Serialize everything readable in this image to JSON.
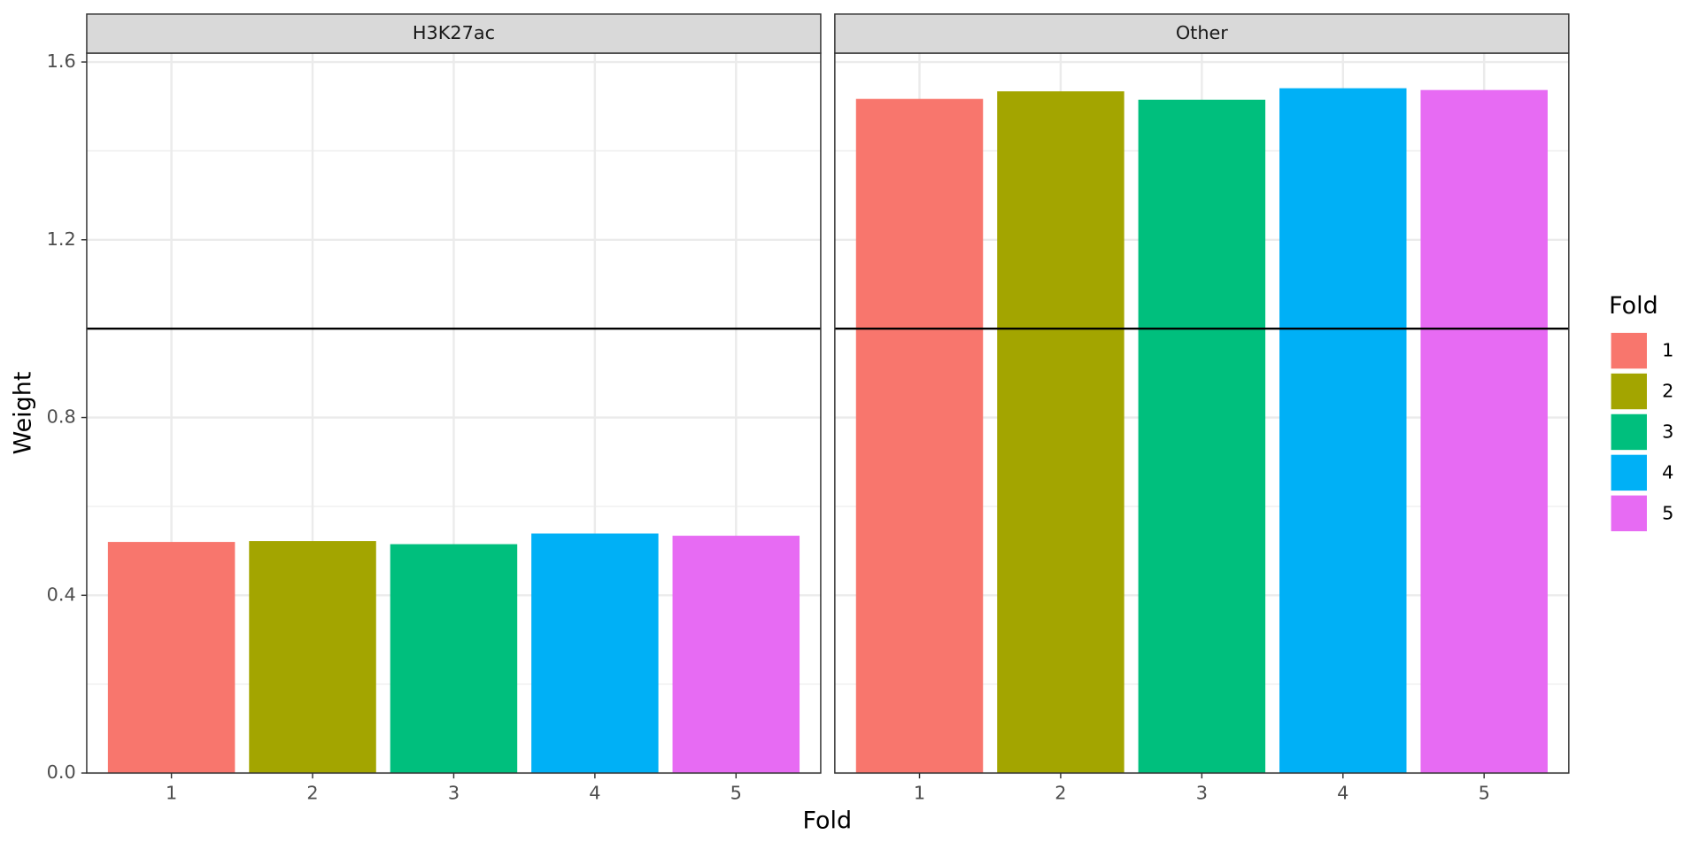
{
  "chart_data": {
    "type": "bar",
    "xlabel": "Fold",
    "ylabel": "Weight",
    "categories": [
      "1",
      "2",
      "3",
      "4",
      "5"
    ],
    "colors": [
      "#F8766D",
      "#A3A500",
      "#00BF7D",
      "#00B0F6",
      "#E76BF3"
    ],
    "legend_title": "Fold",
    "legend": "right",
    "facets": [
      {
        "title": "H3K27ac",
        "values": [
          0.52,
          0.522,
          0.515,
          0.539,
          0.534
        ]
      },
      {
        "title": "Other",
        "values": [
          1.517,
          1.534,
          1.515,
          1.541,
          1.537
        ]
      }
    ],
    "hline": 1,
    "ylim": [
      0,
      1.62
    ],
    "yticks": [
      {
        "value": 0,
        "label": "0.0"
      },
      0.4,
      0.8,
      1.2,
      1.6
    ],
    "minor_yticks": [
      0.2,
      0.6,
      1,
      1.4
    ],
    "grid": true
  }
}
